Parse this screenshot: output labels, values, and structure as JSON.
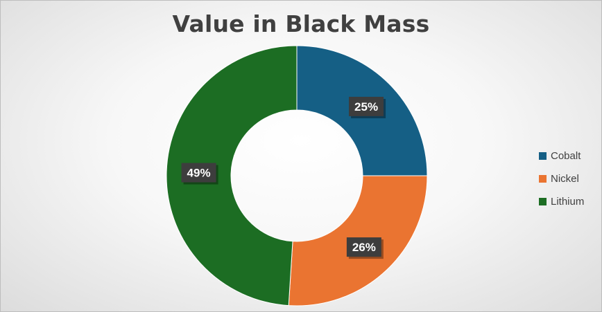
{
  "chart_data": {
    "type": "pie",
    "title": "Value in Black Mass",
    "donut": true,
    "categories": [
      "Cobalt",
      "Nickel",
      "Lithium"
    ],
    "values": [
      25,
      26,
      49
    ],
    "data_labels": [
      "25%",
      "26%",
      "49%"
    ],
    "colors": [
      "#155f85",
      "#ea7431",
      "#1c6d23"
    ],
    "legend_position": "right"
  }
}
